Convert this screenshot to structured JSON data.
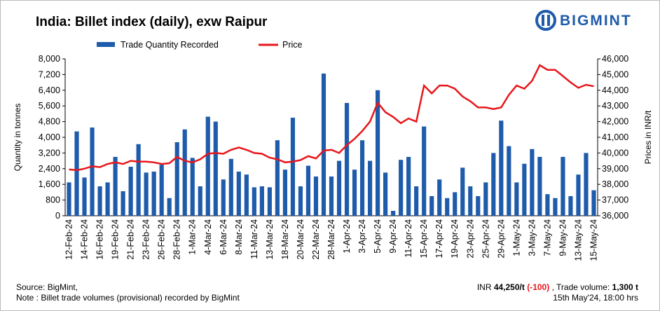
{
  "chart_data": {
    "type": "bar_line",
    "title": "India: Billet index (daily), exw Raipur",
    "logo": "BIGMINT",
    "y_label": "Quantity in tonnes",
    "y2_label": "Prices in INR/t",
    "categories": [
      "12-Feb-24",
      null,
      "14-Feb-24",
      null,
      "16-Feb-24",
      null,
      "19-Feb-24",
      null,
      "21-Feb-24",
      null,
      "23-Feb-24",
      null,
      "26-Feb-24",
      null,
      "28-Feb-24",
      null,
      "1-Mar-24",
      null,
      "4-Mar-24",
      null,
      "6-Mar-24",
      null,
      "8-Mar-24",
      null,
      "11-Mar-24",
      null,
      "13-Mar-24",
      null,
      "18-Mar-24",
      null,
      "20-Mar-24",
      null,
      "22-Mar-24",
      null,
      "28-Mar-24",
      null,
      "1-Apr-24",
      null,
      "3-Apr-24",
      null,
      "5-Apr-24",
      null,
      "9-Apr-24",
      null,
      "11-Apr-24",
      null,
      "15-Apr-24",
      null,
      "17-Apr-24",
      null,
      "19-Apr-24",
      null,
      "23-Apr-24",
      null,
      "25-Apr-24",
      null,
      "29-Apr-24",
      null,
      "1-May-24",
      null,
      "3-May-24",
      null,
      "7-May-24",
      null,
      "9-May-24",
      null,
      "13-May-24",
      null,
      "15-May-24"
    ],
    "series": [
      {
        "name": "Trade Quantity Recorded",
        "type": "bar",
        "color": "#1f5bab",
        "values": [
          1700,
          4300,
          1950,
          4500,
          1500,
          1700,
          3000,
          1250,
          2500,
          3650,
          2200,
          2250,
          2600,
          900,
          3750,
          4400,
          2950,
          1500,
          5050,
          4800,
          1850,
          2900,
          2250,
          2100,
          1450,
          1500,
          1450,
          3850,
          2350,
          5000,
          1500,
          2550,
          2000,
          7250,
          2000,
          2800,
          5750,
          2350,
          3850,
          2800,
          6400,
          2200,
          250,
          2850,
          3000,
          1500,
          4550,
          1000,
          1850,
          900,
          1200,
          2450,
          1500,
          1000,
          1700,
          3200,
          4850,
          3550,
          1700,
          2650,
          3400,
          3000,
          1100,
          900,
          3000,
          1000,
          2100,
          3200,
          1300
        ]
      },
      {
        "name": "Price",
        "type": "line",
        "axis": "y2",
        "color": "#e8161b",
        "values": [
          38950,
          38900,
          39000,
          39150,
          39100,
          39300,
          39400,
          39300,
          39500,
          39450,
          39450,
          39400,
          39300,
          39350,
          39750,
          39500,
          39400,
          39600,
          39950,
          40000,
          39950,
          40200,
          40350,
          40200,
          40000,
          39950,
          39700,
          39600,
          39400,
          39450,
          39550,
          39800,
          39650,
          40150,
          40200,
          40000,
          40500,
          40900,
          41400,
          42000,
          43200,
          42600,
          42300,
          41900,
          42200,
          42000,
          44300,
          43800,
          44300,
          44300,
          44100,
          43600,
          43300,
          42900,
          42900,
          42800,
          42900,
          43700,
          44300,
          44100,
          44600,
          45600,
          45300,
          45300,
          44900,
          44500,
          44150,
          44350,
          44250
        ]
      }
    ],
    "ylim": [
      0,
      8000
    ],
    "yticks": [
      0,
      {
        "value": 800,
        "label": "800"
      },
      {
        "value": 1600,
        "label": "1,600"
      },
      {
        "value": 2400,
        "label": "2,400"
      },
      {
        "value": 3200,
        "label": "3,200"
      },
      {
        "value": 4000,
        "label": "4,000"
      },
      {
        "value": 4800,
        "label": "4,800"
      },
      {
        "value": 5600,
        "label": "5,600"
      },
      {
        "value": 6400,
        "label": "6,400"
      },
      {
        "value": 7200,
        "label": "7,200"
      },
      {
        "value": 8000,
        "label": "8,000"
      }
    ],
    "y2lim": [
      36000,
      46000
    ],
    "y2ticks": [
      {
        "value": 36000,
        "label": "36,000"
      },
      {
        "value": 37000,
        "label": "37,000"
      },
      {
        "value": 38000,
        "label": "38,000"
      },
      {
        "value": 39000,
        "label": "39,000"
      },
      {
        "value": 40000,
        "label": "40,000"
      },
      {
        "value": 41000,
        "label": "41,000"
      },
      {
        "value": 42000,
        "label": "42,000"
      },
      {
        "value": 43000,
        "label": "43,000"
      },
      {
        "value": 44000,
        "label": "44,000"
      },
      {
        "value": 45000,
        "label": "45,000"
      },
      {
        "value": 46000,
        "label": "46,000"
      }
    ],
    "legend": "top"
  },
  "footer": {
    "source": "Source: BigMint,",
    "note": "Note : Billet trade volumes (provisional) recorded by BigMint",
    "summary": {
      "prefix": "INR",
      "price": "44,250/t",
      "change": "(-100)",
      "mid": ", Trade volume:",
      "volume": "1,300 t"
    },
    "timestamp": "15th May'24, 18:00 hrs"
  }
}
